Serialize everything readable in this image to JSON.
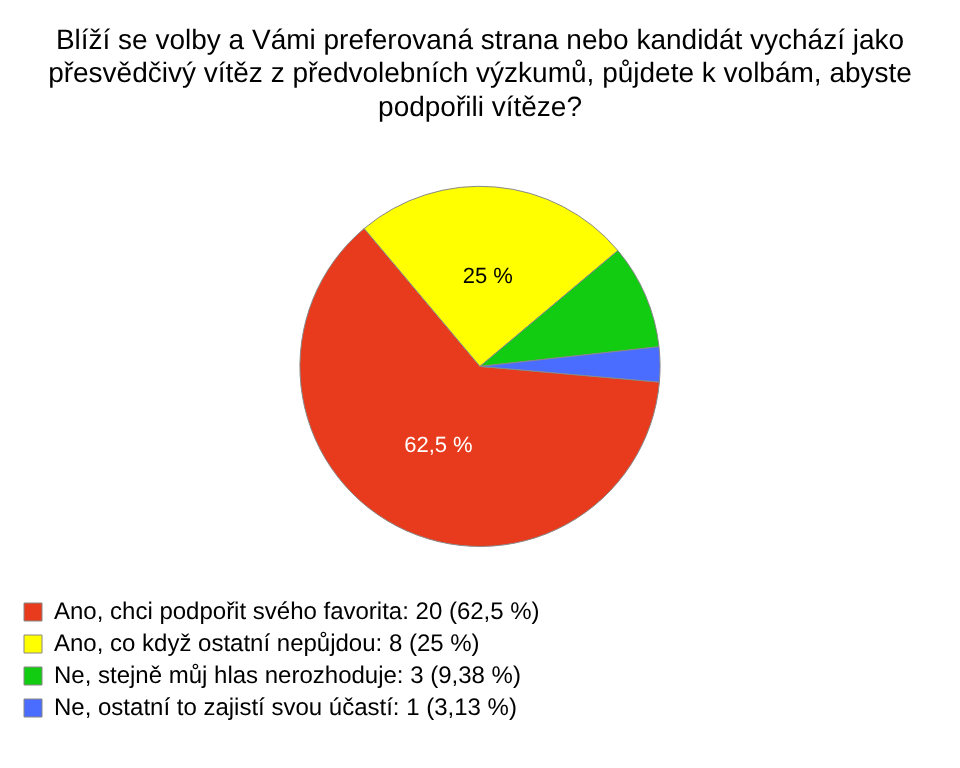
{
  "chart_data": {
    "type": "pie",
    "title": "Blíží se volby a Vámi preferovaná strana nebo kandidát vychází jako přesvědčivý vítěz z předvolebních výzkumů, půjdete k volbám, abyste podpořili vítěze?",
    "categories": [
      "Ano, chci podpořit svého favorita: 20 (62,5 %)",
      "Ano, co když ostatní nepůjdou: 8 (25 %)",
      "Ne, stejně můj hlas nerozhoduje: 3 (9,38 %)",
      "Ne, ostatní to zajistí svou účastí: 1 (3,13 %)"
    ],
    "values": [
      62.5,
      25,
      9.38,
      3.13
    ],
    "colors": [
      "#e83a1c",
      "#ffff00",
      "#11cc11",
      "#4a6cff"
    ],
    "value_labels": [
      "62,5 %",
      "25 %",
      null,
      null
    ],
    "legend": "bottom"
  }
}
